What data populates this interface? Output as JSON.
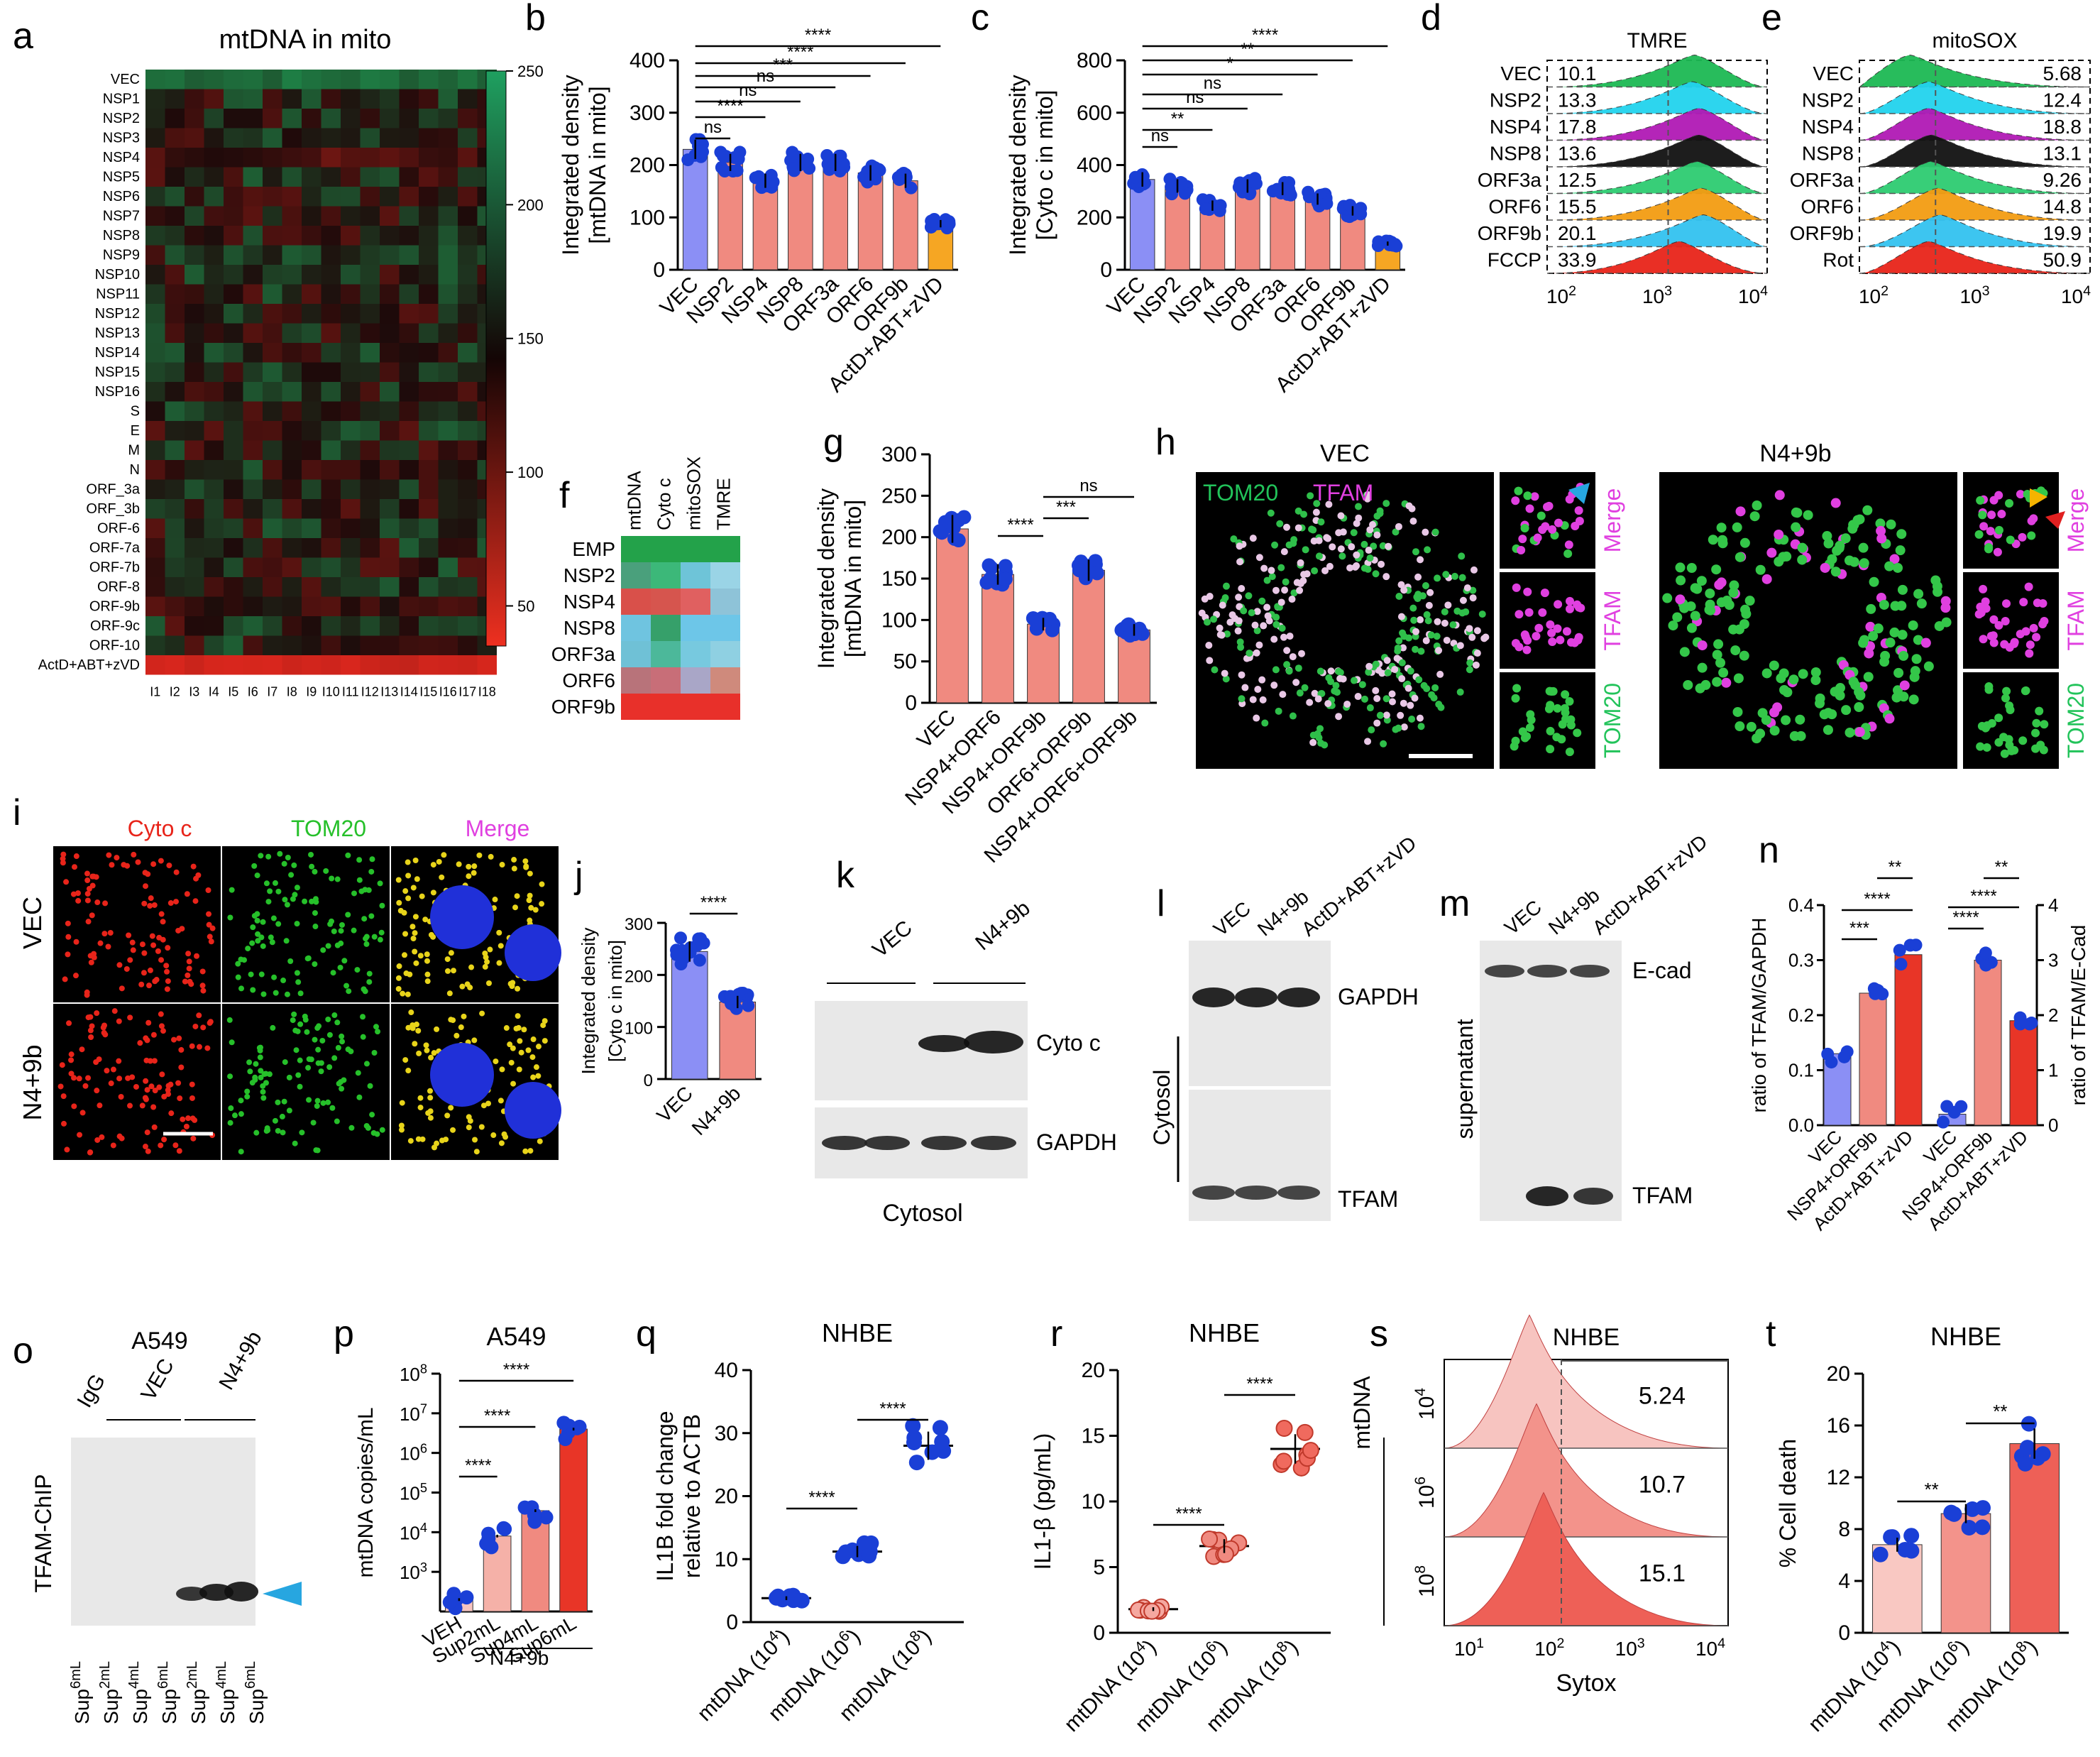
{
  "panel_letters": [
    "a",
    "b",
    "c",
    "d",
    "e",
    "f",
    "g",
    "h",
    "i",
    "j",
    "k",
    "l",
    "m",
    "n",
    "o",
    "p",
    "q",
    "r",
    "s",
    "t"
  ],
  "colors": {
    "vec": "#8b8ff5",
    "salmon": "#f08a80",
    "orange": "#f6a623",
    "dot": "#1a3fd6",
    "red": "#e83527",
    "pink": "#f7c4c0"
  },
  "panel_a": {
    "title": "mtDNA in mito",
    "rows": [
      "VEC",
      "NSP1",
      "NSP2",
      "NSP3",
      "NSP4",
      "NSP5",
      "NSP6",
      "NSP7",
      "NSP8",
      "NSP9",
      "NSP10",
      "NSP11",
      "NSP12",
      "NSP13",
      "NSP14",
      "NSP15",
      "NSP16",
      "S",
      "E",
      "M",
      "N",
      "ORF_3a",
      "ORF_3b",
      "ORF-6",
      "ORF-7a",
      "ORF-7b",
      "ORF-8",
      "ORF-9b",
      "ORF-9c",
      "ORF-10",
      "ActD+ABT+zVD"
    ],
    "cols": [
      "I1",
      "I2",
      "I3",
      "I4",
      "I5",
      "I6",
      "I7",
      "I8",
      "I9",
      "I10",
      "I11",
      "I12",
      "I13",
      "I14",
      "I15",
      "I16",
      "I17",
      "I18"
    ],
    "colorbar_ticks": [
      "250",
      "200",
      "150",
      "100",
      "50"
    ]
  },
  "chart_data": [
    {
      "id": "b",
      "type": "bar",
      "ylabel": "Integrated density\n[mtDNA in mito]",
      "ylim": [
        0,
        400
      ],
      "yticks": [
        "0",
        "100",
        "200",
        "300",
        "400"
      ],
      "categories": [
        "VEC",
        "NSP2",
        "NSP4",
        "NSP8",
        "ORF3a",
        "ORF6",
        "ORF9b",
        "ActD+ABT+zVD"
      ],
      "values": [
        230,
        205,
        170,
        205,
        205,
        185,
        170,
        88
      ],
      "significance": [
        "ns",
        "****",
        "ns",
        "ns",
        "***",
        "****",
        "****"
      ]
    },
    {
      "id": "c",
      "type": "bar",
      "ylabel": "Integrated density\n[Cyto c in mito]",
      "ylim": [
        0,
        800
      ],
      "yticks": [
        "0",
        "200",
        "400",
        "600",
        "800"
      ],
      "categories": [
        "VEC",
        "NSP2",
        "NSP4",
        "NSP8",
        "ORF3a",
        "ORF6",
        "ORF9b",
        "ActD+ABT+zVD"
      ],
      "values": [
        345,
        320,
        245,
        320,
        310,
        270,
        225,
        100
      ],
      "significance": [
        "ns",
        "**",
        "ns",
        "ns",
        "*",
        "**",
        "****"
      ]
    },
    {
      "id": "g",
      "type": "bar",
      "ylabel": "Integrated density\n[mtDNA in mito]",
      "ylim": [
        0,
        300
      ],
      "yticks": [
        "0",
        "50",
        "100",
        "150",
        "200",
        "250",
        "300"
      ],
      "categories": [
        "VEC",
        "NSP4+ORF6",
        "NSP4+ORF9b",
        "ORF6+ORF9b",
        "NSP4+ORF6+ORF9b"
      ],
      "values": [
        210,
        155,
        95,
        160,
        88
      ],
      "significance": [
        "****",
        "***",
        "ns"
      ]
    },
    {
      "id": "j",
      "type": "bar",
      "ylabel": "Integrated density\n[Cyto c in mito]",
      "ylim": [
        0,
        300
      ],
      "yticks": [
        "0",
        "100",
        "200",
        "300"
      ],
      "categories": [
        "VEC",
        "N4+9b"
      ],
      "values": [
        245,
        148
      ],
      "significance": [
        "****"
      ]
    },
    {
      "id": "n",
      "type": "bar",
      "ylabel": "ratio of TFAM/GAPDH",
      "ylabel2": "ratio of TFAM/E-Cad",
      "ylim": [
        0,
        0.4
      ],
      "yticks": [
        "0.0",
        "0.1",
        "0.2",
        "0.3",
        "0.4"
      ],
      "ylim2": [
        0,
        4
      ],
      "yticks2": [
        "0",
        "1",
        "2",
        "3",
        "4"
      ],
      "categories": [
        "VEC",
        "NSP4+ORF9b",
        "ActD+ABT+zVD",
        "VEC",
        "NSP4+ORF9b",
        "ActD+ABT+zVD"
      ],
      "values": [
        0.13,
        0.24,
        0.31,
        0.02,
        0.3,
        0.19
      ],
      "significance": [
        "**",
        "****",
        "***",
        "****",
        "****",
        "**"
      ]
    },
    {
      "id": "p",
      "type": "bar",
      "title": "A549",
      "ylabel": "mtDNA copies/mL",
      "scale": "log",
      "yticks": [
        "10^3",
        "10^4",
        "10^5",
        "10^6",
        "10^7",
        "10^8"
      ],
      "categories": [
        "VEH",
        "Sup2mL",
        "Sup4mL",
        "Sup6mL"
      ],
      "values": [
        200,
        8000,
        35000,
        4000000
      ],
      "significance": [
        "****",
        "****",
        "****"
      ]
    },
    {
      "id": "q",
      "type": "scatter",
      "title": "NHBE",
      "ylabel": "IL1B fold change\nrelative to ACTB",
      "ylim": [
        0,
        40
      ],
      "yticks": [
        "0",
        "10",
        "20",
        "30",
        "40"
      ],
      "categories": [
        "mtDNA (10^4)",
        "mtDNA (10^6)",
        "mtDNA (10^8)"
      ],
      "values": [
        3.8,
        11.2,
        28
      ],
      "significance": [
        "****",
        "****"
      ]
    },
    {
      "id": "r",
      "type": "scatter",
      "title": "NHBE",
      "ylabel": "IL1-β (pg/mL)",
      "ylim": [
        0,
        20
      ],
      "yticks": [
        "0",
        "5",
        "10",
        "15",
        "20"
      ],
      "categories": [
        "mtDNA (10^4)",
        "mtDNA (10^6)",
        "mtDNA (10^8)"
      ],
      "values": [
        1.8,
        6.6,
        14
      ],
      "significance": [
        "****",
        "****"
      ]
    },
    {
      "id": "t",
      "type": "bar",
      "title": "NHBE",
      "ylabel": "% Cell death",
      "ylim": [
        0,
        20
      ],
      "yticks": [
        "0",
        "4",
        "8",
        "12",
        "16",
        "20"
      ],
      "categories": [
        "mtDNA (10^4)",
        "mtDNA (10^6)",
        "mtDNA (10^8)"
      ],
      "values": [
        6.8,
        9.2,
        14.6
      ],
      "significance": [
        "**",
        "**"
      ]
    }
  ],
  "panel_d": {
    "title": "TMRE",
    "rows": [
      "VEC",
      "NSP2",
      "NSP4",
      "NSP8",
      "ORF3a",
      "ORF6",
      "ORF9b",
      "FCCP"
    ],
    "values": [
      "10.1",
      "13.3",
      "17.8",
      "13.6",
      "12.5",
      "15.5",
      "20.1",
      "33.9"
    ],
    "xticks": [
      "10^2",
      "10^3",
      "10^4"
    ]
  },
  "panel_e": {
    "title": "mitoSOX",
    "rows": [
      "VEC",
      "NSP2",
      "NSP4",
      "NSP8",
      "ORF3a",
      "ORF6",
      "ORF9b",
      "Rot"
    ],
    "values": [
      "5.68",
      "12.4",
      "18.8",
      "13.1",
      "9.26",
      "14.8",
      "19.9",
      "50.9"
    ],
    "xticks": [
      "10^2",
      "10^3",
      "10^4"
    ]
  },
  "panel_f": {
    "cols": [
      "mtDNA",
      "Cyto c",
      "mitoSOX",
      "TMRE"
    ],
    "rows": [
      "EMP",
      "NSP2",
      "NSP4",
      "NSP8",
      "ORF3a",
      "ORF6",
      "ORF9b"
    ]
  },
  "panel_h": {
    "left_title": "VEC",
    "right_title": "N4+9b",
    "ch1": "TOM20",
    "ch2": "TFAM",
    "side": [
      "Merge",
      "TFAM",
      "TOM20"
    ]
  },
  "panel_i": {
    "cols": [
      "Cyto c",
      "TOM20",
      "Merge"
    ],
    "rows": [
      "VEC",
      "N4+9b"
    ]
  },
  "panel_k": {
    "groups": [
      "VEC",
      "N4+9b"
    ],
    "bands": [
      "Cyto c",
      "GAPDH"
    ],
    "footer": "Cytosol"
  },
  "panel_l": {
    "lanes": [
      "VEC",
      "N4+9b",
      "ActD+ABT+zVD"
    ],
    "bands": [
      "GAPDH",
      "TFAM"
    ],
    "side": "Cytosol"
  },
  "panel_m": {
    "lanes": [
      "VEC",
      "N4+9b",
      "ActD+ABT+zVD"
    ],
    "bands": [
      "E-cad",
      "TFAM"
    ],
    "side": "supernatant"
  },
  "panel_o": {
    "title": "A549",
    "lanes": [
      "IgG",
      "VEC",
      "N4+9b"
    ],
    "side": "TFAM-ChIP",
    "bottom": [
      "Sup6mL",
      "Sup2mL",
      "Sup4mL",
      "Sup6mL",
      "Sup2mL",
      "Sup4mL",
      "Sup6mL"
    ]
  },
  "panel_p_group": "N4+9b",
  "panel_s": {
    "title": "NHBE",
    "side": "mtDNA",
    "rows": [
      "10^4",
      "10^6",
      "10^8"
    ],
    "values": [
      "5.24",
      "10.7",
      "15.1"
    ],
    "xlabel": "Sytox",
    "xticks": [
      "10^1",
      "10^2",
      "10^3",
      "10^4"
    ]
  }
}
